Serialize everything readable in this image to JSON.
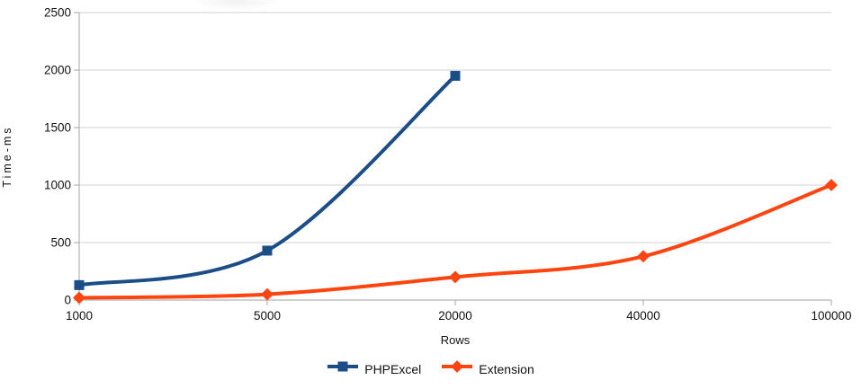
{
  "chart_data": {
    "type": "line",
    "title": "",
    "categories": [
      "1000",
      "5000",
      "20000",
      "40000",
      "100000"
    ],
    "series": [
      {
        "name": "PHPExcel",
        "color": "#1b4e87",
        "marker": "square",
        "values": [
          130,
          430,
          1950,
          null,
          null
        ]
      },
      {
        "name": "Extension",
        "color": "#ff4410",
        "marker": "diamond",
        "values": [
          20,
          50,
          200,
          380,
          1000
        ]
      }
    ],
    "xlabel": "Rows",
    "ylabel": "Time-ms",
    "ylim": [
      0,
      2500
    ],
    "ytick_step": 500,
    "yticks": [
      "0",
      "500",
      "1000",
      "1500",
      "2000",
      "2500"
    ],
    "grid": true,
    "legend_position": "bottom",
    "line_width": 4,
    "smooth": true
  },
  "colors": {
    "background": "#ffffff",
    "gridline": "#d9d9d9",
    "axis": "#b3b3b3",
    "text": "#111111"
  }
}
